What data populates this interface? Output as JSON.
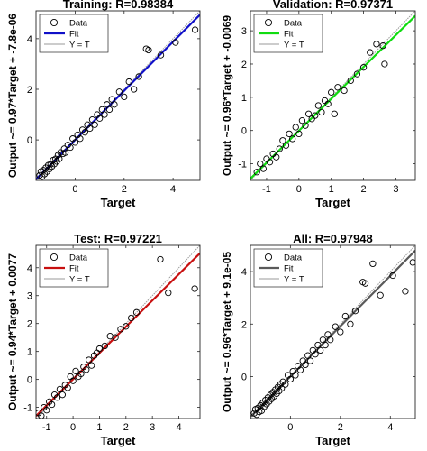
{
  "chart_data": [
    {
      "type": "scatter",
      "title": "Training: R=0.98384",
      "xlabel": "Target",
      "ylabel": "Output ~= 0.97*Target + -7.8e-06",
      "xlim": [
        -1.6,
        5.1
      ],
      "ylim": [
        -1.6,
        5.1
      ],
      "xticks": [
        0,
        2,
        4
      ],
      "yticks": [
        0,
        2,
        4
      ],
      "grid": false,
      "legend": {
        "placement": "top-left",
        "entries": [
          "Data",
          "Fit",
          "Y = T"
        ]
      },
      "fit": {
        "slope": 0.97,
        "intercept": 0
      },
      "fit_color": "#1010c8",
      "series": [
        {
          "name": "Data",
          "x": [
            -1.45,
            -1.4,
            -1.35,
            -1.3,
            -1.25,
            -1.2,
            -1.15,
            -1.1,
            -1.05,
            -1.0,
            -0.95,
            -0.9,
            -0.85,
            -0.8,
            -0.75,
            -0.7,
            -0.65,
            -0.6,
            -0.5,
            -0.45,
            -0.4,
            -0.3,
            -0.2,
            -0.1,
            0.0,
            0.1,
            0.2,
            0.3,
            0.4,
            0.5,
            0.6,
            0.7,
            0.8,
            0.9,
            1.0,
            1.1,
            1.2,
            1.3,
            1.4,
            1.5,
            1.6,
            1.8,
            2.0,
            2.2,
            2.4,
            2.6,
            2.9,
            3.0,
            3.5,
            4.1,
            4.9
          ],
          "y": [
            -1.4,
            -1.25,
            -1.45,
            -1.2,
            -1.35,
            -1.1,
            -1.25,
            -1.0,
            -1.15,
            -0.95,
            -1.05,
            -0.8,
            -0.95,
            -0.75,
            -0.85,
            -0.6,
            -0.75,
            -0.5,
            -0.55,
            -0.35,
            -0.5,
            -0.2,
            -0.3,
            0.05,
            -0.1,
            0.2,
            0.05,
            0.4,
            0.3,
            0.6,
            0.45,
            0.8,
            0.6,
            1.0,
            0.85,
            1.2,
            1.0,
            1.4,
            1.2,
            1.6,
            1.4,
            1.9,
            1.7,
            2.3,
            2.0,
            2.5,
            3.6,
            3.55,
            3.35,
            3.85,
            4.35
          ]
        }
      ]
    },
    {
      "type": "scatter",
      "title": "Validation: R=0.97371",
      "xlabel": "Target",
      "ylabel": "Output ~= 0.96*Target + -0.0069",
      "xlim": [
        -1.5,
        3.6
      ],
      "ylim": [
        -1.5,
        3.6
      ],
      "xticks": [
        -1,
        0,
        1,
        2,
        3
      ],
      "yticks": [
        -1,
        0,
        1,
        2,
        3
      ],
      "grid": false,
      "legend": {
        "placement": "top-left",
        "entries": [
          "Data",
          "Fit",
          "Y = T"
        ]
      },
      "fit": {
        "slope": 0.96,
        "intercept": -0.0069
      },
      "fit_color": "#10dc10",
      "series": [
        {
          "name": "Data",
          "x": [
            -1.3,
            -1.2,
            -1.1,
            -1.0,
            -0.9,
            -0.8,
            -0.7,
            -0.6,
            -0.5,
            -0.4,
            -0.3,
            -0.2,
            -0.1,
            0.0,
            0.1,
            0.2,
            0.3,
            0.4,
            0.5,
            0.6,
            0.7,
            0.8,
            0.9,
            1.0,
            1.1,
            1.2,
            1.4,
            1.6,
            1.8,
            2.0,
            2.2,
            2.4,
            2.6,
            2.65
          ],
          "y": [
            -1.25,
            -1.0,
            -1.15,
            -0.85,
            -0.95,
            -0.7,
            -0.8,
            -0.55,
            -0.3,
            -0.45,
            -0.1,
            -0.25,
            0.1,
            -0.1,
            0.3,
            0.15,
            0.5,
            0.35,
            0.45,
            0.75,
            0.55,
            0.9,
            0.8,
            1.15,
            0.5,
            1.3,
            1.2,
            1.5,
            1.7,
            1.9,
            2.35,
            2.6,
            2.55,
            2.0
          ]
        }
      ]
    },
    {
      "type": "scatter",
      "title": "Test: R=0.97221",
      "xlabel": "Target",
      "ylabel": "Output ~= 0.94*Target + 0.0077",
      "xlim": [
        -1.4,
        4.8
      ],
      "ylim": [
        -1.4,
        4.8
      ],
      "xticks": [
        -1,
        0,
        1,
        2,
        3,
        4
      ],
      "yticks": [
        -1,
        0,
        1,
        2,
        3,
        4
      ],
      "grid": false,
      "legend": {
        "placement": "top-left",
        "entries": [
          "Data",
          "Fit",
          "Y = T"
        ]
      },
      "fit": {
        "slope": 0.94,
        "intercept": 0.0077
      },
      "fit_color": "#c81010",
      "series": [
        {
          "name": "Data",
          "x": [
            -1.3,
            -1.2,
            -1.1,
            -1.0,
            -0.9,
            -0.8,
            -0.7,
            -0.6,
            -0.5,
            -0.4,
            -0.3,
            -0.2,
            -0.1,
            0.0,
            0.1,
            0.2,
            0.3,
            0.4,
            0.5,
            0.6,
            0.7,
            0.8,
            0.9,
            1.0,
            1.2,
            1.4,
            1.6,
            1.8,
            2.0,
            2.2,
            2.4,
            3.3,
            3.6,
            4.6
          ],
          "y": [
            -1.2,
            -1.3,
            -1.0,
            -1.1,
            -0.8,
            -0.9,
            -0.55,
            -0.65,
            -0.35,
            -0.55,
            -0.2,
            -0.3,
            0.1,
            -0.05,
            0.3,
            0.1,
            0.2,
            0.45,
            0.35,
            0.7,
            0.5,
            0.85,
            0.95,
            1.1,
            1.2,
            1.55,
            1.5,
            1.8,
            1.9,
            2.2,
            2.4,
            4.3,
            3.1,
            3.25
          ]
        }
      ]
    },
    {
      "type": "scatter",
      "title": "All: R=0.97948",
      "xlabel": "Target",
      "ylabel": "Output ~= 0.96*Target + 9.1e-05",
      "xlim": [
        -1.6,
        5.0
      ],
      "ylim": [
        -1.6,
        5.0
      ],
      "xticks": [
        0,
        2,
        4
      ],
      "yticks": [
        0,
        2,
        4
      ],
      "grid": false,
      "legend": {
        "placement": "top-left",
        "entries": [
          "Data",
          "Fit",
          "Y = T"
        ]
      },
      "fit": {
        "slope": 0.96,
        "intercept": 0.0001
      },
      "fit_color": "#5a5a5a",
      "series": [
        {
          "name": "Data",
          "x": [
            -1.45,
            -1.4,
            -1.35,
            -1.3,
            -1.25,
            -1.2,
            -1.15,
            -1.1,
            -1.05,
            -1.0,
            -0.95,
            -0.9,
            -0.85,
            -0.8,
            -0.75,
            -0.7,
            -0.65,
            -0.6,
            -0.55,
            -0.5,
            -0.45,
            -0.4,
            -0.35,
            -0.3,
            -0.2,
            -0.1,
            0.0,
            0.1,
            0.2,
            0.3,
            0.4,
            0.5,
            0.6,
            0.7,
            0.8,
            0.9,
            1.0,
            1.1,
            1.2,
            1.3,
            1.4,
            1.5,
            1.6,
            1.8,
            2.0,
            2.2,
            2.4,
            2.6,
            2.9,
            3.0,
            3.3,
            3.6,
            4.1,
            4.6,
            4.9
          ],
          "y": [
            -1.4,
            -1.25,
            -1.45,
            -1.2,
            -1.35,
            -1.1,
            -1.3,
            -1.0,
            -1.15,
            -0.9,
            -1.05,
            -0.8,
            -0.95,
            -0.7,
            -0.85,
            -0.6,
            -0.75,
            -0.5,
            -0.65,
            -0.4,
            -0.55,
            -0.3,
            -0.45,
            -0.2,
            -0.3,
            0.05,
            -0.1,
            0.2,
            0.05,
            0.4,
            0.25,
            0.6,
            0.45,
            0.8,
            0.6,
            1.0,
            0.85,
            1.2,
            1.0,
            1.4,
            1.2,
            1.6,
            1.4,
            1.9,
            1.7,
            2.3,
            2.0,
            2.5,
            3.6,
            3.55,
            4.3,
            3.1,
            3.85,
            3.25,
            4.35
          ]
        }
      ]
    }
  ]
}
